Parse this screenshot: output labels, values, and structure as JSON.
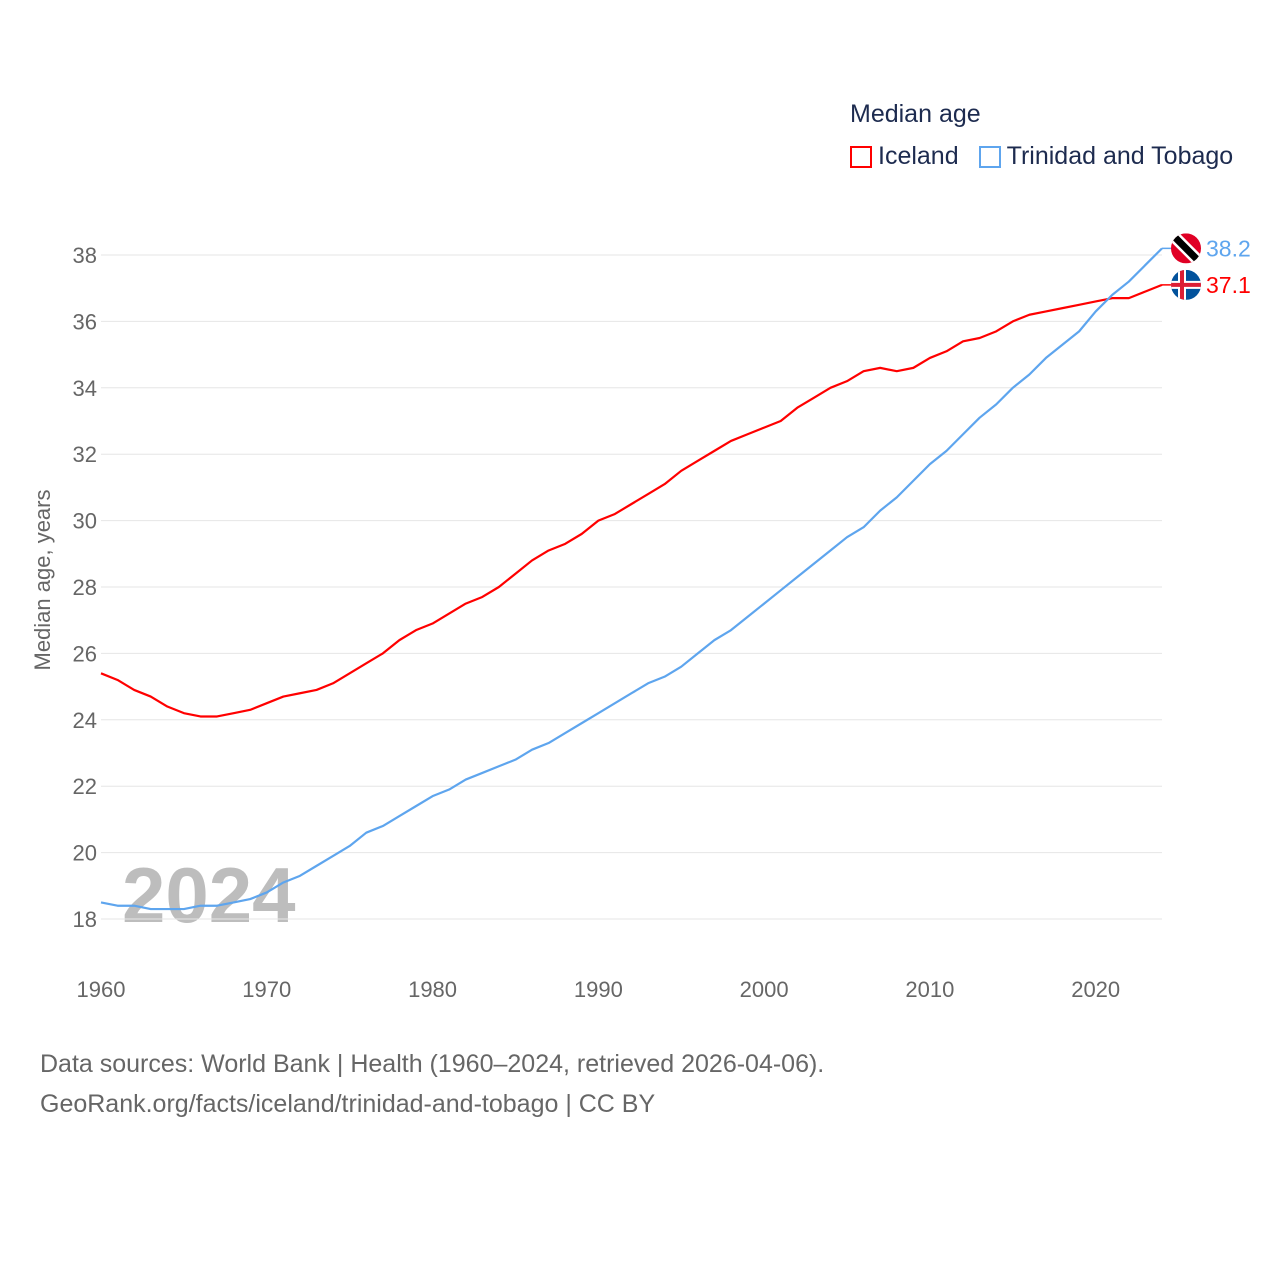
{
  "chart_data": {
    "type": "line",
    "title": "Median age",
    "xlabel": "",
    "ylabel": "Median age, years",
    "xlim": [
      1960,
      2024
    ],
    "ylim": [
      18,
      38
    ],
    "xticks": [
      1960,
      1970,
      1980,
      1990,
      2000,
      2010,
      2020
    ],
    "yticks": [
      18,
      20,
      22,
      24,
      26,
      28,
      30,
      32,
      34,
      36,
      38
    ],
    "grid": true,
    "legend_position": "top-right",
    "watermark_year": "2024",
    "x": [
      1960,
      1961,
      1962,
      1963,
      1964,
      1965,
      1966,
      1967,
      1968,
      1969,
      1970,
      1971,
      1972,
      1973,
      1974,
      1975,
      1976,
      1977,
      1978,
      1979,
      1980,
      1981,
      1982,
      1983,
      1984,
      1985,
      1986,
      1987,
      1988,
      1989,
      1990,
      1991,
      1992,
      1993,
      1994,
      1995,
      1996,
      1997,
      1998,
      1999,
      2000,
      2001,
      2002,
      2003,
      2004,
      2005,
      2006,
      2007,
      2008,
      2009,
      2010,
      2011,
      2012,
      2013,
      2014,
      2015,
      2016,
      2017,
      2018,
      2019,
      2020,
      2021,
      2022,
      2023,
      2024
    ],
    "series": [
      {
        "name": "Iceland",
        "color": "#ff0000",
        "end_label": "37.1",
        "values": [
          25.4,
          25.2,
          24.9,
          24.7,
          24.4,
          24.2,
          24.1,
          24.1,
          24.2,
          24.3,
          24.5,
          24.7,
          24.8,
          24.9,
          25.1,
          25.4,
          25.7,
          26.0,
          26.4,
          26.7,
          26.9,
          27.2,
          27.5,
          27.7,
          28.0,
          28.4,
          28.8,
          29.1,
          29.3,
          29.6,
          30.0,
          30.2,
          30.5,
          30.8,
          31.1,
          31.5,
          31.8,
          32.1,
          32.4,
          32.6,
          32.8,
          33.0,
          33.4,
          33.7,
          34.0,
          34.2,
          34.5,
          34.6,
          34.5,
          34.6,
          34.9,
          35.1,
          35.4,
          35.5,
          35.7,
          36.0,
          36.2,
          36.3,
          36.4,
          36.5,
          36.6,
          36.7,
          36.7,
          36.9,
          37.1
        ]
      },
      {
        "name": "Trinidad and Tobago",
        "color": "#5ea5ee",
        "end_label": "38.2",
        "values": [
          18.5,
          18.4,
          18.4,
          18.3,
          18.3,
          18.3,
          18.4,
          18.4,
          18.5,
          18.6,
          18.8,
          19.1,
          19.3,
          19.6,
          19.9,
          20.2,
          20.6,
          20.8,
          21.1,
          21.4,
          21.7,
          21.9,
          22.2,
          22.4,
          22.6,
          22.8,
          23.1,
          23.3,
          23.6,
          23.9,
          24.2,
          24.5,
          24.8,
          25.1,
          25.3,
          25.6,
          26.0,
          26.4,
          26.7,
          27.1,
          27.5,
          27.9,
          28.3,
          28.7,
          29.1,
          29.5,
          29.8,
          30.3,
          30.7,
          31.2,
          31.7,
          32.1,
          32.6,
          33.1,
          33.5,
          34.0,
          34.4,
          34.9,
          35.3,
          35.7,
          36.3,
          36.8,
          37.2,
          37.7,
          38.2
        ]
      }
    ]
  },
  "footer": {
    "line1": "Data sources: World Bank | Health (1960–2024, retrieved 2026-04-06).",
    "line2": "GeoRank.org/facts/iceland/trinidad-and-tobago | CC BY"
  }
}
